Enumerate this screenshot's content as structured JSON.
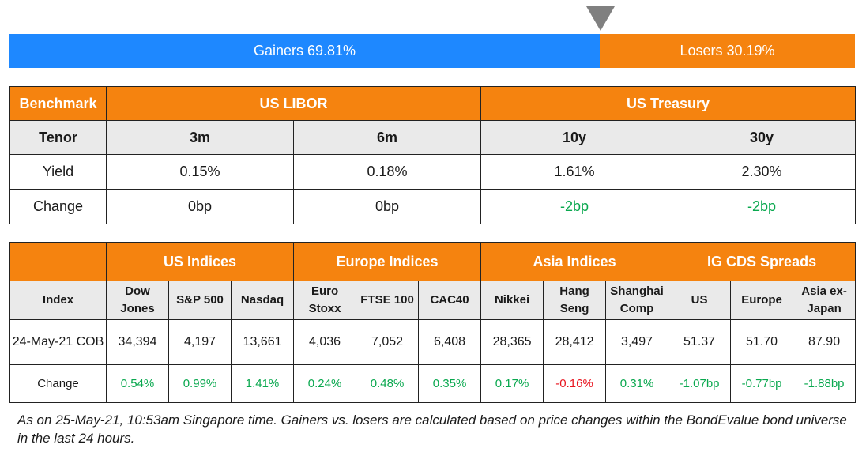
{
  "breadth": {
    "gainers_label": "Gainers 69.81%",
    "losers_label": "Losers 30.19%",
    "gainers_pct": 69.81,
    "losers_pct": 30.19,
    "colors": {
      "gainers": "#1e88ff",
      "losers": "#f5830f",
      "marker": "#808080"
    }
  },
  "rates": {
    "header": {
      "benchmark": "Benchmark",
      "group1": "US LIBOR",
      "group2": "US Treasury"
    },
    "tenor_label": "Tenor",
    "tenors": [
      "3m",
      "6m",
      "10y",
      "30y"
    ],
    "yield_label": "Yield",
    "yields": [
      "0.15%",
      "0.18%",
      "1.61%",
      "2.30%"
    ],
    "change_label": "Change",
    "changes": [
      "0bp",
      "0bp",
      "-2bp",
      "-2bp"
    ],
    "change_dirs": [
      "flat",
      "flat",
      "pos",
      "pos"
    ]
  },
  "indices": {
    "groups": [
      "US Indices",
      "Europe Indices",
      "Asia Indices",
      "IG CDS Spreads"
    ],
    "index_label": "Index",
    "columns": [
      [
        "Dow",
        "Jones"
      ],
      [
        "S&P 500"
      ],
      [
        "Nasdaq"
      ],
      [
        "Euro",
        "Stoxx"
      ],
      [
        "FTSE 100"
      ],
      [
        "CAC40"
      ],
      [
        "Nikkei"
      ],
      [
        "Hang",
        "Seng"
      ],
      [
        "Shanghai",
        "Comp"
      ],
      [
        "US"
      ],
      [
        "Europe"
      ],
      [
        "Asia ex-",
        "Japan"
      ]
    ],
    "date_label": "24-May-21 COB",
    "values": [
      "34,394",
      "4,197",
      "13,661",
      "4,036",
      "7,052",
      "6,408",
      "28,365",
      "28,412",
      "3,497",
      "51.37",
      "51.70",
      "87.90"
    ],
    "change_label": "Change",
    "changes": [
      "0.54%",
      "0.99%",
      "1.41%",
      "0.24%",
      "0.48%",
      "0.35%",
      "0.17%",
      "-0.16%",
      "0.31%",
      "-1.07bp",
      "-0.77bp",
      "-1.88bp"
    ],
    "change_dirs": [
      "pos",
      "pos",
      "pos",
      "pos",
      "pos",
      "pos",
      "pos",
      "neg",
      "pos",
      "pos",
      "pos",
      "pos"
    ]
  },
  "colors": {
    "header_orange": "#f5830f",
    "subheader_gray": "#eaeaea",
    "positive_green": "#0aa84f",
    "negative_red": "#e8141e"
  },
  "footnote": "As on 25-May-21, 10:53am Singapore time. Gainers vs. losers are calculated based on price changes within the BondEvalue bond universe in the last 24 hours."
}
